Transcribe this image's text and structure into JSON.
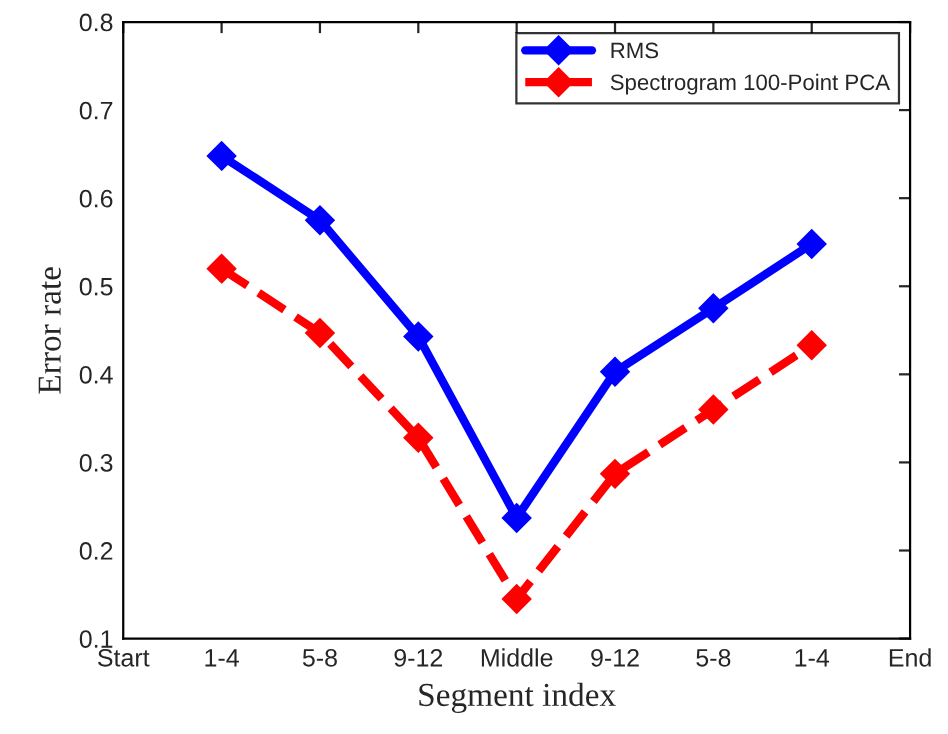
{
  "chart_data": {
    "type": "line",
    "xlabel": "Segment index",
    "ylabel": "Error rate",
    "categories": [
      "Start",
      "1-4",
      "5-8",
      "9-12",
      "Middle",
      "9-12",
      "5-8",
      "1-4",
      "End"
    ],
    "series": [
      {
        "name": "RMS",
        "color": "#0000ff",
        "line_style": "solid",
        "values": [
          null,
          0.648,
          0.575,
          0.443,
          0.237,
          0.403,
          0.475,
          0.548,
          null
        ]
      },
      {
        "name": "Spectrogram 100-Point PCA",
        "color": "#ff0000",
        "line_style": "dashed",
        "values": [
          null,
          0.52,
          0.447,
          0.328,
          0.145,
          0.287,
          0.36,
          0.433,
          null
        ]
      }
    ],
    "ylim": [
      0.1,
      0.8
    ],
    "yticks": [
      0.1,
      0.2,
      0.3,
      0.4,
      0.5,
      0.6,
      0.7,
      0.8
    ],
    "marker": "diamond",
    "legend": "top right",
    "grid": false
  }
}
